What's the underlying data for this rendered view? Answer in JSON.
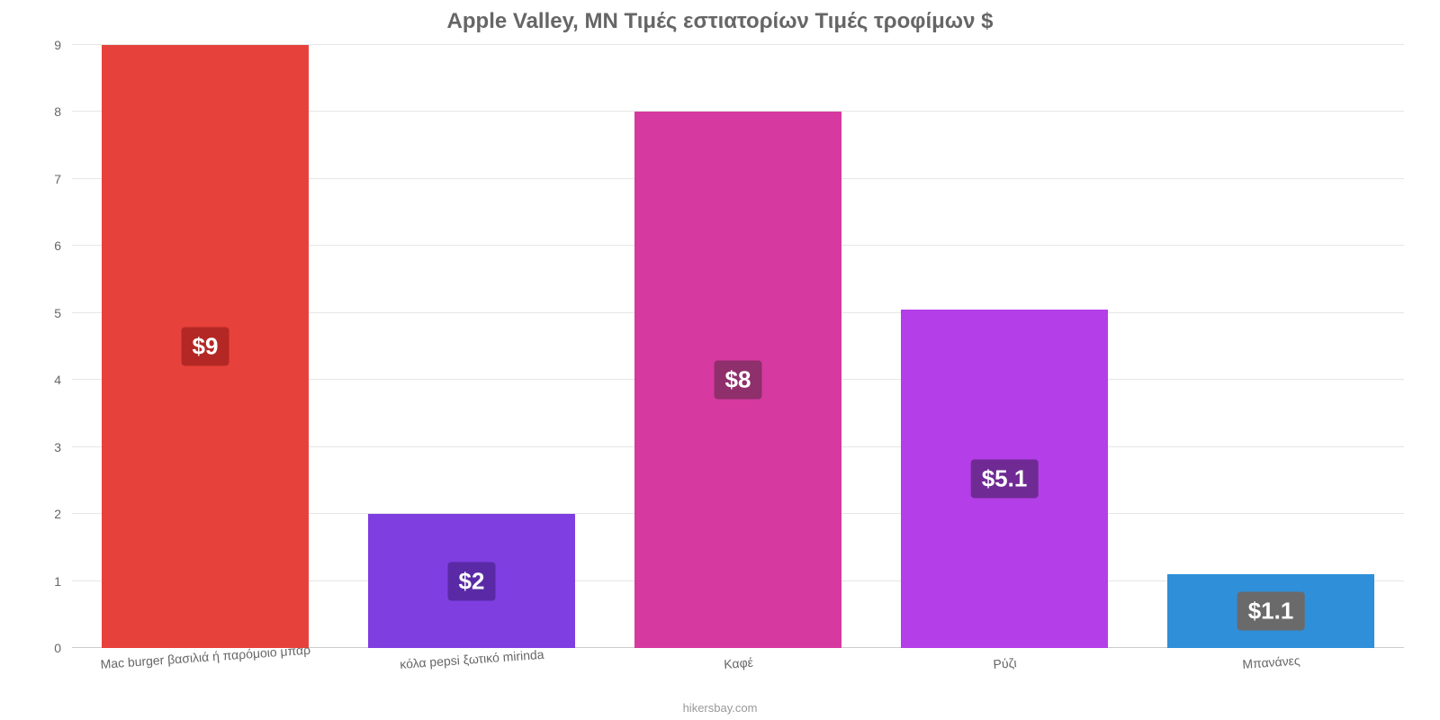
{
  "chart": {
    "type": "bar",
    "title": "Apple Valley, MN Τιμές εστιατορίων Τιμές τροφίμων $",
    "title_color": "#666666",
    "title_fontsize": 24,
    "source": "hikersbay.com",
    "source_fontsize": 13,
    "background_color": "#ffffff",
    "grid_color": "#e6e6e6",
    "axis_label_color": "#666666",
    "axis_fontsize": 14,
    "x_label_rotation_deg": -4,
    "ylim": [
      0,
      9
    ],
    "yticks": [
      0,
      1,
      2,
      3,
      4,
      5,
      6,
      7,
      8,
      9
    ],
    "bar_width_ratio": 0.78,
    "bars": [
      {
        "category": "Mac burger βασιλιά ή παρόμοιο μπαρ",
        "value": 9,
        "value_label": "$9",
        "color": "#e7413c",
        "label_bg": "#b32824",
        "label_fontsize": 26
      },
      {
        "category": "κόλα pepsi ξωτικό mirinda",
        "value": 2,
        "value_label": "$2",
        "color": "#7e3ee0",
        "label_bg": "#5a2aa6",
        "label_fontsize": 26
      },
      {
        "category": "Καφέ",
        "value": 8,
        "value_label": "$8",
        "color": "#d6399f",
        "label_bg": "#8f2f6c",
        "label_fontsize": 26
      },
      {
        "category": "Ρύζι",
        "value": 5.05,
        "value_label": "$5.1",
        "color": "#b43ee7",
        "label_bg": "#6f2a94",
        "label_fontsize": 26
      },
      {
        "category": "Μπανάνες",
        "value": 1.1,
        "value_label": "$1.1",
        "color": "#2f8fd8",
        "label_bg": "#6a6a6a",
        "label_fontsize": 26
      }
    ]
  }
}
